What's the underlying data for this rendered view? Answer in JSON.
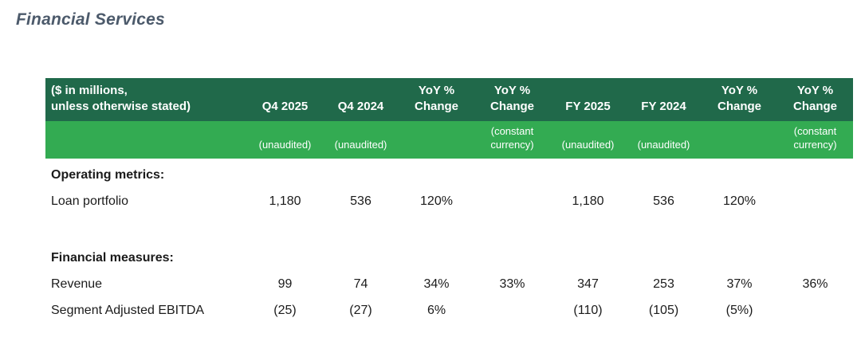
{
  "page_title": "Financial Services",
  "colors": {
    "header_dark_green": "#20694A",
    "header_light_green": "#33AB52",
    "header_text": "#FFFFFF",
    "body_text": "#1B1B1B",
    "title_text": "#4C5A6B"
  },
  "table": {
    "corner_label": "($ in millions,\nunless otherwise stated)",
    "columns": [
      {
        "label": "Q4 2025",
        "subnote": "(unaudited)"
      },
      {
        "label": "Q4 2024",
        "subnote": "(unaudited)"
      },
      {
        "label": "YoY %\nChange",
        "subnote": ""
      },
      {
        "label": "YoY %\nChange",
        "subnote": "(constant\ncurrency)"
      },
      {
        "label": "FY 2025",
        "subnote": "(unaudited)"
      },
      {
        "label": "FY 2024",
        "subnote": "(unaudited)"
      },
      {
        "label": "YoY %\nChange",
        "subnote": ""
      },
      {
        "label": "YoY %\nChange",
        "subnote": "(constant\ncurrency)"
      }
    ],
    "sections": [
      {
        "heading": "Operating metrics:",
        "rows": [
          {
            "label": "Loan portfolio",
            "values": [
              "1,180",
              "536",
              "120%",
              "",
              "1,180",
              "536",
              "120%",
              ""
            ]
          }
        ]
      },
      {
        "heading": "Financial measures:",
        "rows": [
          {
            "label": "Revenue",
            "values": [
              "99",
              "74",
              "34%",
              "33%",
              "347",
              "253",
              "37%",
              "36%"
            ]
          },
          {
            "label": "Segment Adjusted EBITDA",
            "values": [
              "(25)",
              "(27)",
              "6%",
              "",
              "(110)",
              "(105)",
              "(5%)",
              ""
            ]
          }
        ]
      }
    ]
  }
}
